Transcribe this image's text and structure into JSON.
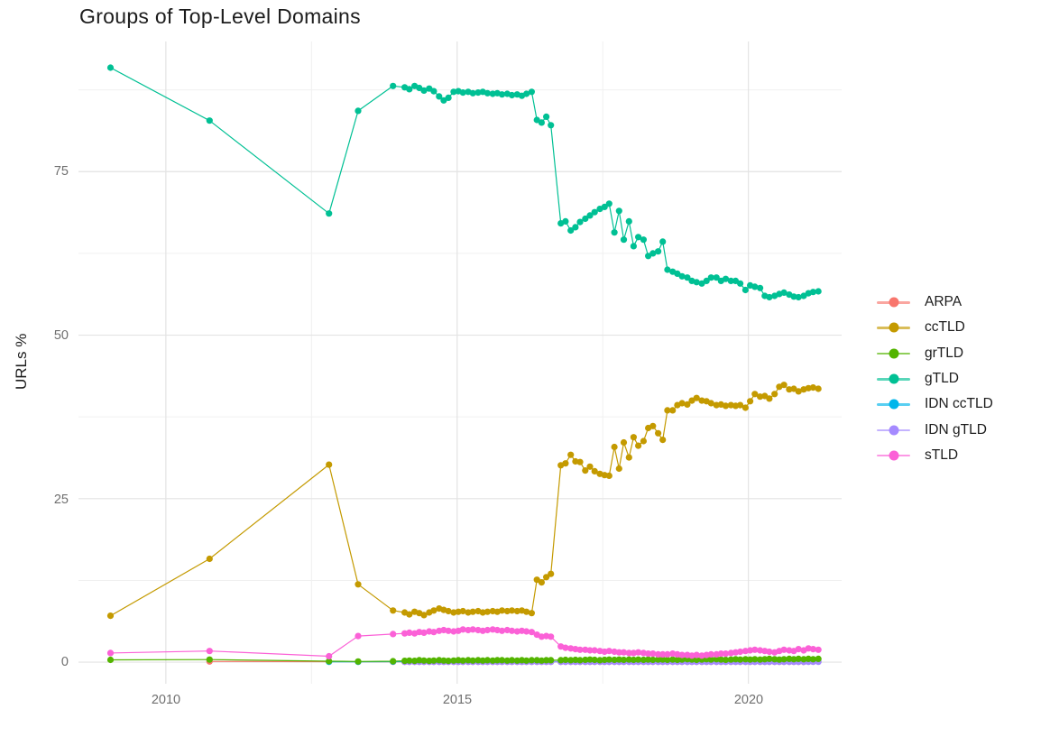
{
  "chart_data": {
    "type": "scatter",
    "title": "Groups of Top-Level Domains",
    "xlabel": "",
    "ylabel": "URLs %",
    "xlim": [
      2008.5,
      2021.6
    ],
    "ylim": [
      -3.3,
      94.9
    ],
    "grid": true,
    "legend_position": "right",
    "x_breaks": [
      2010,
      2015,
      2020
    ],
    "x_tick_labels": [
      "2010",
      "2015",
      "2020"
    ],
    "x_minor_breaks": [
      2012.5,
      2017.5
    ],
    "y_breaks": [
      0,
      25,
      50,
      75
    ],
    "y_tick_labels": [
      "0",
      "25",
      "50",
      "75"
    ],
    "y_minor_breaks": [
      12.5,
      37.5,
      62.5,
      87.5
    ],
    "z_order": [
      "ARPA",
      "IDN ccTLD",
      "IDN gTLD",
      "ccTLD",
      "grTLD",
      "gTLD",
      "sTLD"
    ],
    "x": [
      2009.05,
      2010.75,
      2012.8,
      2013.3,
      2013.9,
      2014.1,
      2014.18,
      2014.27,
      2014.35,
      2014.43,
      2014.52,
      2014.6,
      2014.69,
      2014.77,
      2014.85,
      2014.94,
      2015.02,
      2015.1,
      2015.19,
      2015.27,
      2015.36,
      2015.44,
      2015.52,
      2015.61,
      2015.69,
      2015.77,
      2015.86,
      2015.94,
      2016.03,
      2016.11,
      2016.19,
      2016.28,
      2016.37,
      2016.45,
      2016.53,
      2016.61,
      2016.78,
      2016.86,
      2016.95,
      2017.03,
      2017.11,
      2017.2,
      2017.28,
      2017.36,
      2017.45,
      2017.53,
      2017.61,
      2017.7,
      2017.78,
      2017.86,
      2017.95,
      2018.03,
      2018.11,
      2018.2,
      2018.28,
      2018.36,
      2018.45,
      2018.53,
      2018.61,
      2018.7,
      2018.78,
      2018.86,
      2018.95,
      2019.03,
      2019.11,
      2019.2,
      2019.28,
      2019.36,
      2019.45,
      2019.53,
      2019.61,
      2019.7,
      2019.78,
      2019.86,
      2019.95,
      2020.03,
      2020.11,
      2020.2,
      2020.28,
      2020.36,
      2020.45,
      2020.53,
      2020.61,
      2020.7,
      2020.78,
      2020.86,
      2020.95,
      2021.03,
      2021.11,
      2021.2
    ],
    "series": [
      {
        "name": "ARPA",
        "color": "#F8766D",
        "start_index": 1,
        "values": [
          0.1,
          0.08,
          0.06,
          0.05,
          0.05,
          0.05,
          0.05,
          0.05,
          0.05,
          0.05,
          0.05,
          0.05,
          0.05,
          0.05,
          0.05,
          0.05,
          0.05,
          0.05,
          0.05,
          0.05,
          0.05,
          0.05,
          0.05,
          0.05,
          0.05,
          0.05,
          0.05,
          0.05,
          0.05,
          0.05,
          0.05,
          0.05,
          0.05,
          0.05,
          0.05,
          0.05,
          0.05,
          0.05,
          0.05,
          0.05,
          0.05,
          0.05,
          0.05,
          0.05,
          0.05,
          0.05,
          0.05,
          0.05,
          0.05,
          0.05,
          0.05,
          0.05,
          0.05,
          0.05,
          0.05,
          0.05,
          0.05,
          0.05,
          0.05,
          0.05,
          0.05,
          0.05,
          0.05,
          0.05,
          0.05,
          0.05,
          0.05,
          0.05,
          0.05,
          0.05,
          0.05,
          0.05,
          0.05,
          0.05,
          0.05,
          0.05,
          0.05,
          0.05,
          0.05,
          0.05,
          0.05,
          0.05,
          0.05,
          0.05,
          0.05,
          0.05
        ]
      },
      {
        "name": "ccTLD",
        "color": "#C49A00",
        "start_index": 0,
        "values": [
          7.1,
          15.8,
          30.2,
          11.9,
          7.9,
          7.6,
          7.3,
          7.7,
          7.5,
          7.2,
          7.6,
          7.9,
          8.2,
          8.0,
          7.8,
          7.6,
          7.7,
          7.8,
          7.6,
          7.7,
          7.8,
          7.6,
          7.7,
          7.8,
          7.7,
          7.9,
          7.8,
          7.9,
          7.8,
          7.9,
          7.7,
          7.5,
          12.6,
          12.2,
          13.0,
          13.5,
          30.1,
          30.4,
          31.7,
          30.7,
          30.6,
          29.3,
          29.9,
          29.2,
          28.8,
          28.6,
          28.5,
          32.9,
          29.6,
          33.6,
          31.3,
          34.4,
          33.1,
          33.8,
          35.8,
          36.1,
          35.0,
          34.0,
          38.5,
          38.5,
          39.3,
          39.6,
          39.4,
          40.0,
          40.4,
          40.0,
          39.9,
          39.6,
          39.3,
          39.4,
          39.2,
          39.3,
          39.2,
          39.3,
          38.9,
          39.9,
          41.0,
          40.6,
          40.7,
          40.3,
          41.0,
          42.1,
          42.4,
          41.7,
          41.8,
          41.4,
          41.7,
          41.9,
          42.0,
          41.8
        ]
      },
      {
        "name": "grTLD",
        "color": "#53B400",
        "start_index": 0,
        "values": [
          0.35,
          0.4,
          0.15,
          0.1,
          0.15,
          0.2,
          0.25,
          0.2,
          0.3,
          0.25,
          0.2,
          0.25,
          0.3,
          0.25,
          0.2,
          0.25,
          0.3,
          0.25,
          0.3,
          0.25,
          0.3,
          0.25,
          0.3,
          0.25,
          0.3,
          0.3,
          0.25,
          0.3,
          0.25,
          0.3,
          0.25,
          0.3,
          0.3,
          0.25,
          0.3,
          0.3,
          0.3,
          0.35,
          0.3,
          0.35,
          0.3,
          0.35,
          0.4,
          0.35,
          0.3,
          0.35,
          0.4,
          0.35,
          0.4,
          0.35,
          0.4,
          0.35,
          0.4,
          0.35,
          0.4,
          0.35,
          0.4,
          0.4,
          0.35,
          0.4,
          0.35,
          0.4,
          0.45,
          0.4,
          0.35,
          0.4,
          0.45,
          0.4,
          0.45,
          0.4,
          0.35,
          0.4,
          0.45,
          0.4,
          0.45,
          0.4,
          0.45,
          0.4,
          0.45,
          0.5,
          0.45,
          0.4,
          0.45,
          0.5,
          0.45,
          0.5,
          0.45,
          0.5,
          0.45,
          0.5
        ]
      },
      {
        "name": "gTLD",
        "color": "#00C094",
        "start_index": 0,
        "values": [
          90.9,
          82.8,
          68.6,
          84.3,
          88.1,
          87.9,
          87.6,
          88.1,
          87.8,
          87.4,
          87.7,
          87.3,
          86.5,
          85.9,
          86.3,
          87.2,
          87.3,
          87.1,
          87.2,
          87.0,
          87.1,
          87.2,
          87.0,
          86.9,
          87.0,
          86.8,
          86.9,
          86.7,
          86.8,
          86.6,
          86.9,
          87.2,
          82.9,
          82.5,
          83.4,
          82.1,
          67.1,
          67.4,
          66.0,
          66.5,
          67.3,
          67.8,
          68.3,
          68.8,
          69.3,
          69.6,
          70.1,
          65.7,
          69.0,
          64.6,
          67.4,
          63.6,
          65.0,
          64.6,
          62.1,
          62.5,
          62.8,
          64.3,
          60.0,
          59.7,
          59.4,
          59.0,
          58.8,
          58.3,
          58.1,
          57.9,
          58.3,
          58.8,
          58.8,
          58.3,
          58.6,
          58.3,
          58.3,
          57.9,
          56.9,
          57.6,
          57.4,
          57.2,
          56.0,
          55.8,
          56.0,
          56.3,
          56.5,
          56.2,
          55.9,
          55.8,
          56.0,
          56.4,
          56.6,
          56.7
        ]
      },
      {
        "name": "IDN ccTLD",
        "color": "#00B6EB",
        "start_index": 2,
        "values": [
          0.05,
          0.05,
          0.08,
          0.08,
          0.08,
          0.08,
          0.08,
          0.08,
          0.08,
          0.08,
          0.08,
          0.08,
          0.08,
          0.08,
          0.08,
          0.08,
          0.08,
          0.08,
          0.08,
          0.08,
          0.08,
          0.08,
          0.08,
          0.08,
          0.08,
          0.08,
          0.08,
          0.08,
          0.08,
          0.08,
          0.08,
          0.08,
          0.08,
          0.08,
          0.08,
          0.08,
          0.08,
          0.08,
          0.08,
          0.08,
          0.08,
          0.08,
          0.08,
          0.08,
          0.08,
          0.08,
          0.08,
          0.08,
          0.08,
          0.08,
          0.08,
          0.08,
          0.08,
          0.08,
          0.08,
          0.08,
          0.08,
          0.08,
          0.08,
          0.08,
          0.08,
          0.08,
          0.08,
          0.08,
          0.08,
          0.08,
          0.08,
          0.08,
          0.08,
          0.08,
          0.08,
          0.08,
          0.08,
          0.08,
          0.08,
          0.08,
          0.08,
          0.08,
          0.08,
          0.08,
          0.08,
          0.08,
          0.08,
          0.08,
          0.08,
          0.08
        ]
      },
      {
        "name": "IDN gTLD",
        "color": "#A58AFF",
        "start_index": 5,
        "values": [
          0.05,
          0.05,
          0.05,
          0.05,
          0.05,
          0.05,
          0.05,
          0.05,
          0.05,
          0.05,
          0.05,
          0.05,
          0.05,
          0.05,
          0.05,
          0.05,
          0.05,
          0.05,
          0.05,
          0.05,
          0.05,
          0.05,
          0.05,
          0.05,
          0.05,
          0.05,
          0.05,
          0.05,
          0.05,
          0.05,
          0.05,
          0.05,
          0.05,
          0.05,
          0.05,
          0.05,
          0.05,
          0.05,
          0.05,
          0.05,
          0.05,
          0.05,
          0.05,
          0.05,
          0.05,
          0.05,
          0.05,
          0.05,
          0.05,
          0.05,
          0.05,
          0.05,
          0.05,
          0.05,
          0.05,
          0.05,
          0.05,
          0.05,
          0.05,
          0.05,
          0.05,
          0.05,
          0.05,
          0.05,
          0.05,
          0.05,
          0.05,
          0.05,
          0.05,
          0.05,
          0.05,
          0.05,
          0.05,
          0.05,
          0.05,
          0.05,
          0.05,
          0.05,
          0.05,
          0.05,
          0.05,
          0.05,
          0.05,
          0.05,
          0.05
        ]
      },
      {
        "name": "sTLD",
        "color": "#FB61D7",
        "start_index": 0,
        "values": [
          1.4,
          1.7,
          0.9,
          4.0,
          4.3,
          4.4,
          4.5,
          4.4,
          4.6,
          4.5,
          4.7,
          4.6,
          4.8,
          4.9,
          4.8,
          4.7,
          4.8,
          5.0,
          4.9,
          5.0,
          4.9,
          4.8,
          4.9,
          5.0,
          4.9,
          4.8,
          4.9,
          4.8,
          4.7,
          4.8,
          4.7,
          4.6,
          4.2,
          3.9,
          4.0,
          3.9,
          2.4,
          2.2,
          2.1,
          2.0,
          1.9,
          1.9,
          1.8,
          1.8,
          1.7,
          1.6,
          1.7,
          1.6,
          1.5,
          1.5,
          1.4,
          1.4,
          1.5,
          1.4,
          1.3,
          1.3,
          1.2,
          1.2,
          1.2,
          1.3,
          1.2,
          1.1,
          1.1,
          1.0,
          1.1,
          1.0,
          1.1,
          1.2,
          1.2,
          1.3,
          1.3,
          1.4,
          1.5,
          1.6,
          1.7,
          1.8,
          1.9,
          1.8,
          1.7,
          1.6,
          1.5,
          1.7,
          1.9,
          1.8,
          1.7,
          2.0,
          1.8,
          2.1,
          2.0,
          1.9
        ]
      }
    ]
  }
}
